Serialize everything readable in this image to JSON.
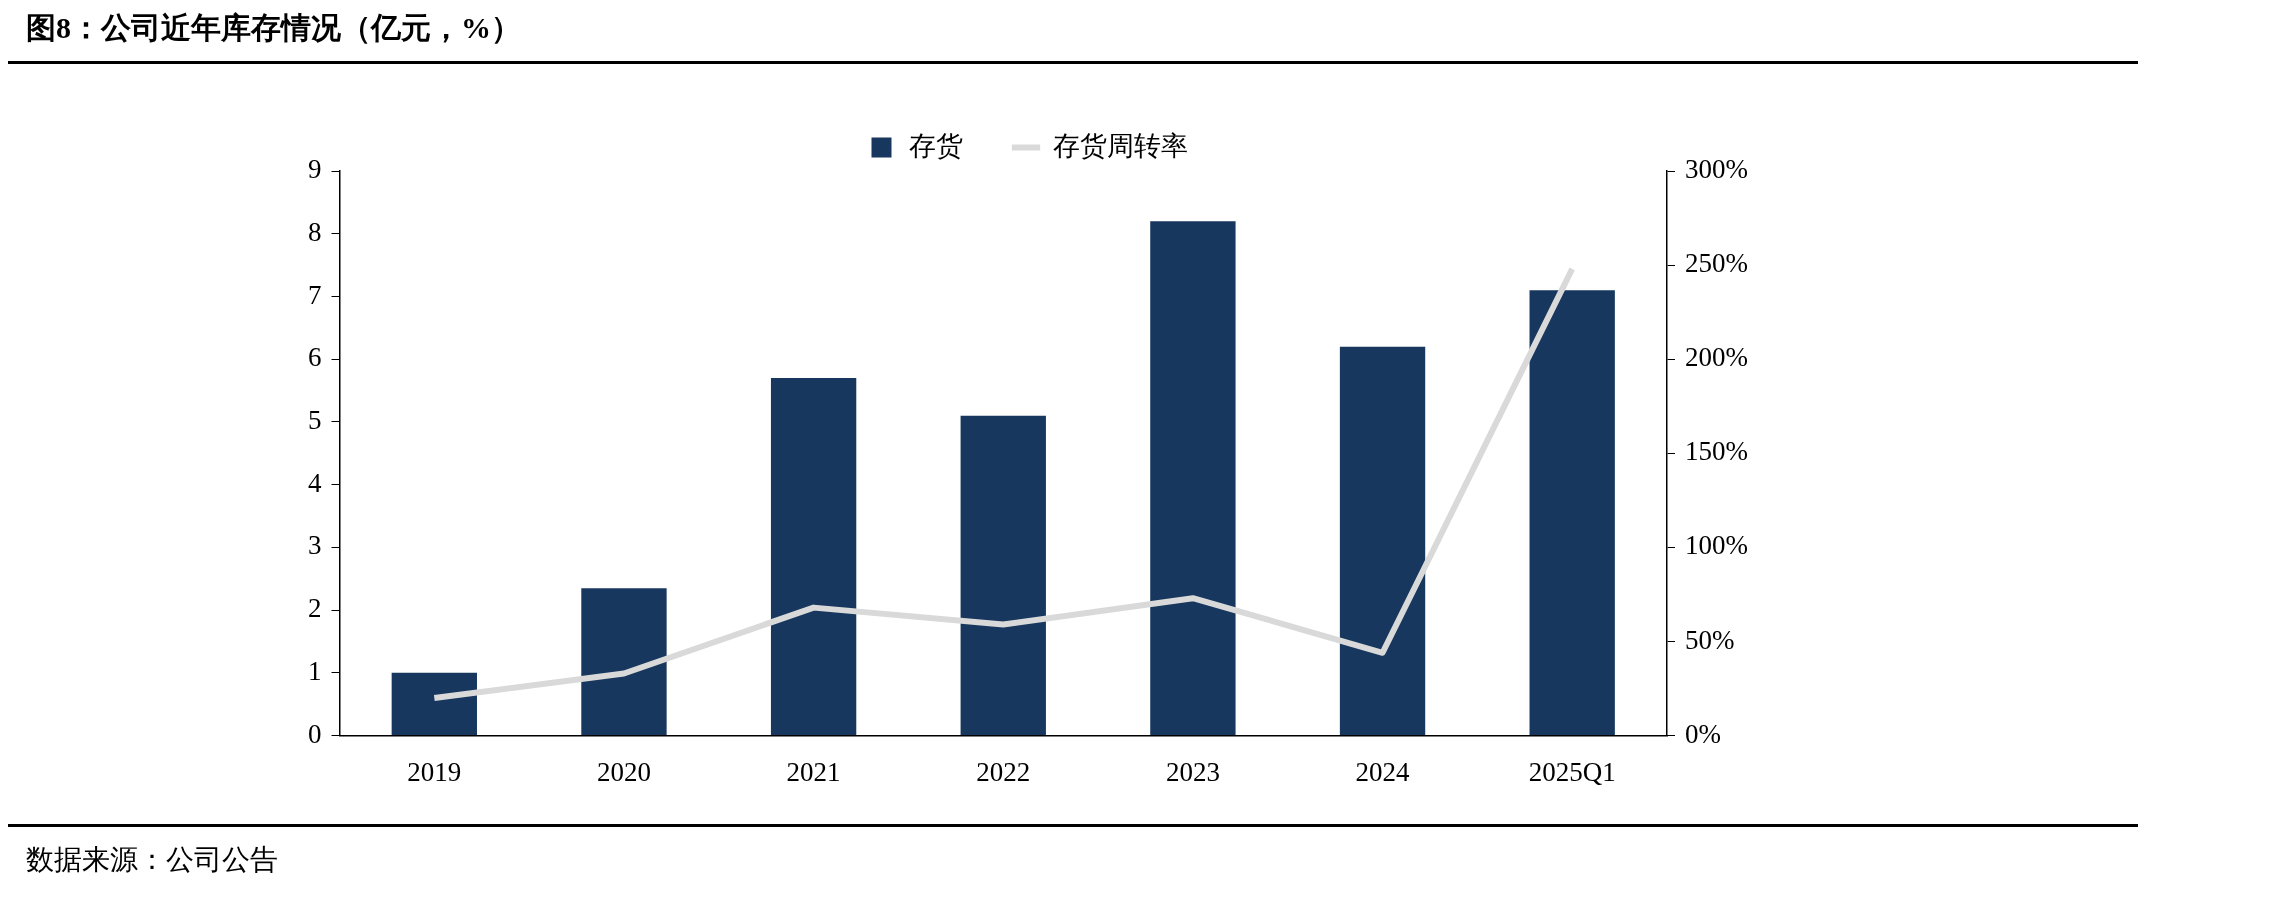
{
  "chart_data": {
    "type": "bar",
    "title": "图8：公司近年库存情况（亿元，%）",
    "categories": [
      "2019",
      "2020",
      "2021",
      "2022",
      "2023",
      "2024",
      "2025Q1"
    ],
    "series": [
      {
        "name": "存货",
        "color": "#17375e",
        "values": [
          1.0,
          2.35,
          5.7,
          5.1,
          8.2,
          6.2,
          7.1
        ]
      },
      {
        "name": "存货周转率",
        "type": "line",
        "axis": "y2",
        "color": "#d9d9d9",
        "values": [
          20,
          33,
          68,
          59,
          73,
          44,
          248
        ]
      }
    ],
    "ylim": [
      0,
      9
    ],
    "yticks": [
      0,
      1,
      2,
      3,
      4,
      5,
      6,
      7,
      8,
      9
    ],
    "y2lim": [
      0,
      300
    ],
    "y2ticks": [
      {
        "value": 0,
        "label": "0%"
      },
      {
        "value": 50,
        "label": "50%"
      },
      {
        "value": 100,
        "label": "100%"
      },
      {
        "value": 150,
        "label": "150%"
      },
      {
        "value": 200,
        "label": "200%"
      },
      {
        "value": 250,
        "label": "250%"
      },
      {
        "value": 300,
        "label": "300%"
      }
    ],
    "grid": false,
    "legend": "top",
    "marker": "none",
    "annotations": [
      "数据来源：公司公告"
    ]
  }
}
